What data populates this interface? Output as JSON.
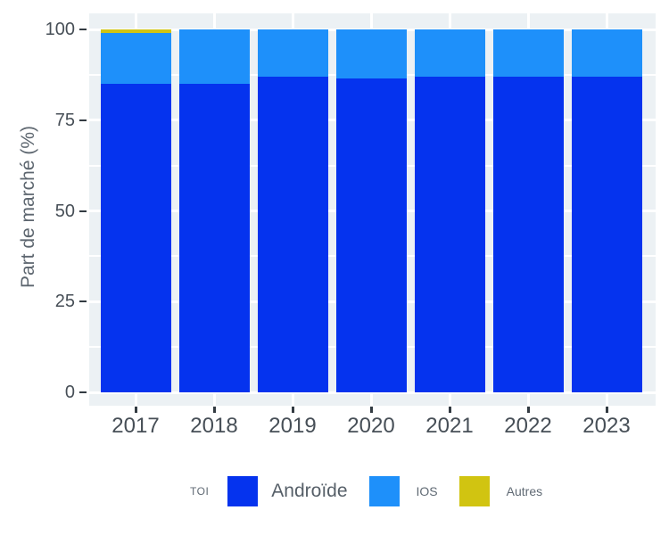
{
  "chart_data": {
    "type": "bar",
    "stacked": true,
    "title": "",
    "xlabel": "",
    "ylabel": "Part de marché (%)",
    "categories": [
      "2017",
      "2018",
      "2019",
      "2020",
      "2021",
      "2022",
      "2023"
    ],
    "series": [
      {
        "name": "Androïde",
        "color": "#0533ee",
        "values": [
          85,
          85,
          87,
          86.5,
          87,
          87,
          87
        ]
      },
      {
        "name": "IOS",
        "color": "#1e90fa",
        "values": [
          14,
          15,
          13,
          13.5,
          13,
          13,
          13
        ]
      },
      {
        "name": "Autres",
        "color": "#d1c411",
        "values": [
          1,
          0,
          0,
          0,
          0,
          0,
          0
        ]
      }
    ],
    "ylim": [
      0,
      100
    ],
    "yticks": [
      0,
      25,
      50,
      75,
      100
    ],
    "yticks_minor": [
      12.5,
      37.5,
      62.5,
      87.5
    ],
    "grid": true,
    "legend_position": "bottom",
    "legend_title": "TOI",
    "panel_bg": "#ecf1f4",
    "grid_color": "#ffffff",
    "tick_text_color": "#474f57",
    "axis_title_color": "#5d666f"
  },
  "legend": {
    "title": "TOI",
    "items": [
      {
        "label": "Androïde",
        "color": "#0533ee"
      },
      {
        "label": "IOS",
        "color": "#1e90fa"
      },
      {
        "label": "Autres",
        "color": "#d1c411"
      }
    ]
  }
}
